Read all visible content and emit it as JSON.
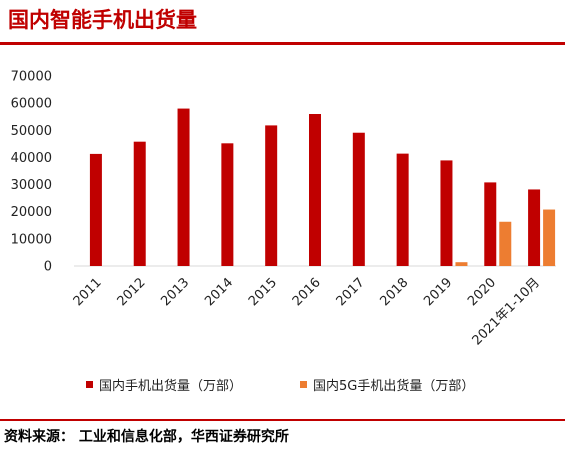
{
  "header": {
    "title": "国内智能手机出货量"
  },
  "footer": {
    "source": "资料来源： 工业和信息化部，华西证券研究所"
  },
  "colors": {
    "accent": "#c00000",
    "series1": "#c00000",
    "series2": "#ed7d31"
  },
  "chart_data": {
    "type": "bar",
    "title": "",
    "xlabel": "",
    "ylabel": "",
    "ylim": [
      0,
      70000
    ],
    "yticks": [
      0,
      10000,
      20000,
      30000,
      40000,
      50000,
      60000,
      70000
    ],
    "grid": false,
    "legend_position": "bottom",
    "categories": [
      "2011",
      "2012",
      "2013",
      "2014",
      "2015",
      "2016",
      "2017",
      "2018",
      "2019",
      "2020",
      "2021年1-10月"
    ],
    "series": [
      {
        "name": "国内手机出货量（万部）",
        "color": "#c00000",
        "values": [
          41300,
          45800,
          58000,
          45200,
          51800,
          56000,
          49100,
          41400,
          38900,
          30800,
          28200
        ]
      },
      {
        "name": "国内5G手机出货量（万部）",
        "color": "#ed7d31",
        "values": [
          null,
          null,
          null,
          null,
          null,
          null,
          null,
          null,
          1400,
          16300,
          20800
        ]
      }
    ]
  }
}
